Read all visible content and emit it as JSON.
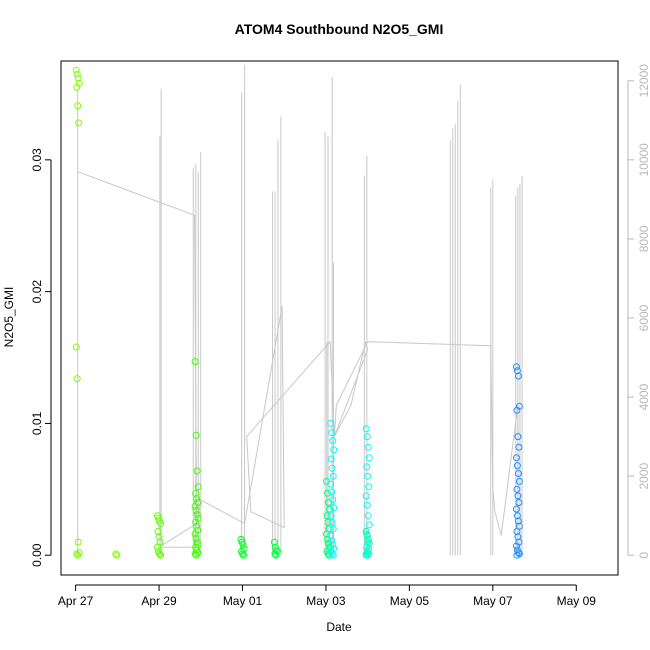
{
  "chart_data": {
    "type": "scatter",
    "title": "ATOM4 Southbound N2O5_GMI",
    "xlabel": "Date",
    "ylabel": "N2O5_GMI",
    "x_ticks": [
      "Apr 27",
      "Apr 29",
      "May 01",
      "May 03",
      "May 05",
      "May 07",
      "May 09"
    ],
    "x_tick_days": [
      0,
      2,
      4,
      6,
      8,
      10,
      12
    ],
    "xlim_days": [
      -0.35,
      13.0
    ],
    "ylim": [
      -0.0015,
      0.0375
    ],
    "y_ticks": [
      0.0,
      0.01,
      0.02,
      0.03
    ],
    "y_tick_labels": [
      "0.00",
      "0.01",
      "0.02",
      "0.03"
    ],
    "y2_ticks": [
      0,
      2000,
      4000,
      6000,
      8000,
      10000,
      12000
    ],
    "y2lim": [
      -500,
      12500
    ],
    "colors": {
      "secondary": "#c8c8c8",
      "box": "#000000"
    },
    "series": [
      {
        "color": "#80ff00",
        "day": 0.05,
        "values": [
          0.0368,
          0.0365,
          0.0362,
          0.0358,
          0.0355,
          0.0341,
          0.0328,
          0.0158,
          0.0134,
          0.001,
          0.0002,
          0.0001,
          0.0
        ]
      },
      {
        "color": "#80ff00",
        "day": 1.0,
        "values": [
          0.0001,
          0.0
        ]
      },
      {
        "color": "#60ff00",
        "day": 2.0,
        "values": [
          0.003,
          0.0028,
          0.0026,
          0.0024,
          0.0018,
          0.0014,
          0.001,
          0.0006,
          0.0003,
          0.0001,
          0.0
        ]
      },
      {
        "color": "#40ff00",
        "day": 2.9,
        "values": [
          0.0147,
          0.0091,
          0.0064,
          0.0052,
          0.0047,
          0.0043,
          0.004,
          0.0037,
          0.0034,
          0.0031,
          0.0028,
          0.0025,
          0.0022,
          0.0019,
          0.0016,
          0.0013,
          0.001,
          0.0008,
          0.0006,
          0.0004,
          0.0002,
          0.0001,
          0.0
        ]
      },
      {
        "color": "#00ff20",
        "day": 4.0,
        "values": [
          0.0012,
          0.001,
          0.0008,
          0.0005,
          0.0003,
          0.0001,
          0.0
        ]
      },
      {
        "color": "#00ff40",
        "day": 4.8,
        "values": [
          0.001,
          0.0006,
          0.0004,
          0.0003,
          0.0001,
          0.0
        ]
      },
      {
        "color": "#00ff70",
        "day": 6.05,
        "values": [
          0.0056,
          0.0047,
          0.004,
          0.0035,
          0.003,
          0.0025,
          0.002,
          0.0016,
          0.0012,
          0.0009,
          0.0006,
          0.0003,
          0.0001,
          0.0
        ]
      },
      {
        "color": "#00ff90",
        "day": 7.0,
        "values": [
          0.0018,
          0.0015,
          0.0012,
          0.0009,
          0.0006,
          0.0003,
          0.0001,
          0.0
        ]
      },
      {
        "color": "#00ffff",
        "day": 6.15,
        "values": [
          0.01,
          0.0093,
          0.0087,
          0.008,
          0.0073,
          0.0066,
          0.006,
          0.0054,
          0.0048,
          0.0042,
          0.0036,
          0.003,
          0.0025,
          0.002,
          0.0015,
          0.0011,
          0.0008,
          0.0005,
          0.0003,
          0.0001,
          0.0
        ]
      },
      {
        "color": "#00ffff",
        "day": 7.0,
        "values": [
          0.0096,
          0.009,
          0.0082,
          0.0074,
          0.0067,
          0.006,
          0.0052,
          0.0045,
          0.0038,
          0.003,
          0.0023,
          0.0016,
          0.001,
          0.0005,
          0.0001,
          0.0
        ]
      },
      {
        "color": "#1e90ff",
        "day": 10.6,
        "values": [
          0.0143,
          0.014,
          0.0136,
          0.0113,
          0.011,
          0.009,
          0.0082,
          0.0074,
          0.0068,
          0.0062,
          0.0056,
          0.005,
          0.0045,
          0.004,
          0.0035,
          0.003,
          0.0026,
          0.0022,
          0.0018,
          0.0014,
          0.001,
          0.0007,
          0.0004,
          0.0002,
          0.0001,
          0.0
        ]
      }
    ],
    "secondary_series": {
      "name": "",
      "color": "#c8c8c8",
      "spikes": [
        {
          "day": 0.05,
          "top": 11800
        },
        {
          "day": 2.02,
          "top": 10600
        },
        {
          "day": 2.05,
          "top": 11800
        },
        {
          "day": 2.82,
          "top": 9800
        },
        {
          "day": 2.88,
          "top": 9900
        },
        {
          "day": 2.94,
          "top": 9700
        },
        {
          "day": 3.0,
          "top": 10200
        },
        {
          "day": 3.98,
          "top": 11700
        },
        {
          "day": 4.05,
          "top": 12400
        },
        {
          "day": 4.72,
          "top": 9200
        },
        {
          "day": 4.78,
          "top": 9200
        },
        {
          "day": 4.85,
          "top": 10500
        },
        {
          "day": 4.92,
          "top": 11100
        },
        {
          "day": 5.98,
          "top": 10700
        },
        {
          "day": 6.05,
          "top": 10600
        },
        {
          "day": 6.15,
          "top": 12100
        },
        {
          "day": 6.18,
          "top": 7400
        },
        {
          "day": 6.92,
          "top": 9600
        },
        {
          "day": 6.98,
          "top": 10100
        },
        {
          "day": 6.02,
          "top": 5400
        },
        {
          "day": 8.98,
          "top": 10500
        },
        {
          "day": 9.04,
          "top": 10800
        },
        {
          "day": 9.1,
          "top": 10900
        },
        {
          "day": 9.16,
          "top": 11500
        },
        {
          "day": 9.22,
          "top": 11900
        },
        {
          "day": 9.95,
          "top": 9300
        },
        {
          "day": 10.0,
          "top": 9500
        },
        {
          "day": 10.55,
          "top": 9100
        },
        {
          "day": 10.6,
          "top": 9300
        },
        {
          "day": 10.65,
          "top": 9400
        },
        {
          "day": 10.7,
          "top": 9600
        }
      ],
      "path": [
        [
          0.05,
          9700
        ],
        [
          2.85,
          8600
        ],
        [
          2.9,
          1100
        ],
        [
          2.85,
          200
        ],
        [
          2.0,
          200
        ],
        [
          2.9,
          800
        ],
        [
          3.0,
          1400
        ],
        [
          4.05,
          800
        ],
        [
          4.95,
          6300
        ],
        [
          5.0,
          700
        ],
        [
          4.2,
          1100
        ],
        [
          4.1,
          3000
        ],
        [
          6.1,
          5400
        ],
        [
          6.2,
          3000
        ],
        [
          6.6,
          3800
        ],
        [
          6.95,
          5400
        ],
        [
          7.0,
          5200
        ],
        [
          6.2,
          3000
        ],
        [
          6.25,
          3800
        ],
        [
          7.0,
          5400
        ],
        [
          9.95,
          5300
        ],
        [
          10.0,
          1700
        ],
        [
          10.05,
          1100
        ],
        [
          10.2,
          500
        ],
        [
          10.6,
          3800
        ],
        [
          10.6,
          300
        ]
      ]
    }
  }
}
